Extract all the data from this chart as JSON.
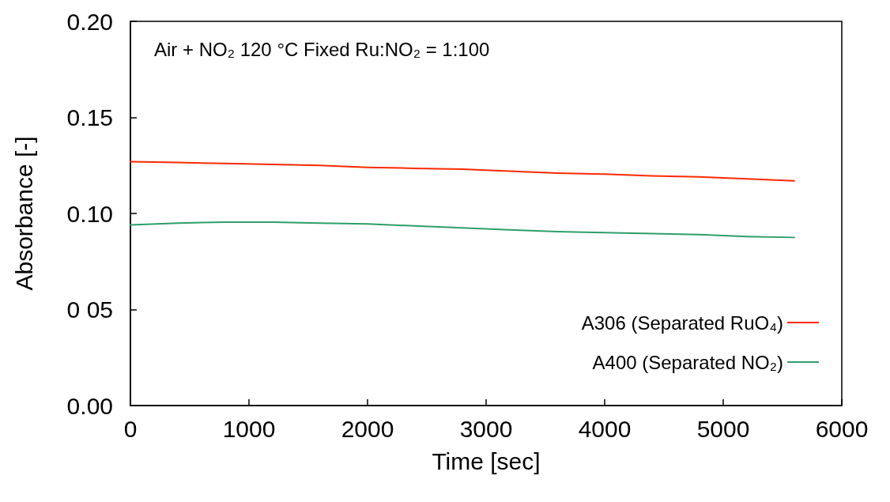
{
  "chart_data": {
    "type": "line",
    "title": "Air + NO₂ 120 °C Fixed Ru:NO₂ = 1:100",
    "xlabel": "Time [sec]",
    "ylabel": "Absorbance [-]",
    "x": [
      0,
      400,
      800,
      1200,
      1600,
      2000,
      2400,
      2800,
      3200,
      3600,
      4000,
      4400,
      4800,
      5200,
      5600
    ],
    "series": [
      {
        "name": "A306 (Separated RuO₄)",
        "color": "#ff2a00",
        "values": [
          0.127,
          0.1265,
          0.126,
          0.1255,
          0.125,
          0.124,
          0.1235,
          0.123,
          0.122,
          0.121,
          0.1205,
          0.1195,
          0.119,
          0.118,
          0.117
        ]
      },
      {
        "name": "A400 (Separated NO₂)",
        "color": "#2e9e6b",
        "values": [
          0.094,
          0.095,
          0.0955,
          0.0955,
          0.095,
          0.0945,
          0.0935,
          0.0925,
          0.0915,
          0.0905,
          0.09,
          0.0895,
          0.089,
          0.088,
          0.0875
        ]
      }
    ],
    "xlim": [
      0,
      6000
    ],
    "xticks": [
      0,
      1000,
      2000,
      3000,
      4000,
      5000,
      6000
    ],
    "ylim": [
      0,
      0.2
    ],
    "yticks": [
      {
        "value": 0,
        "label": "0.00"
      },
      {
        "value": 0.05,
        "label": "0 05"
      },
      {
        "value": 0.1,
        "label": "0.10"
      },
      {
        "value": 0.15,
        "label": "0.15"
      },
      {
        "value": 0.2,
        "label": "0.20"
      }
    ],
    "grid": false,
    "legend": "bottom right",
    "marker": "none",
    "line_style": "solid"
  }
}
